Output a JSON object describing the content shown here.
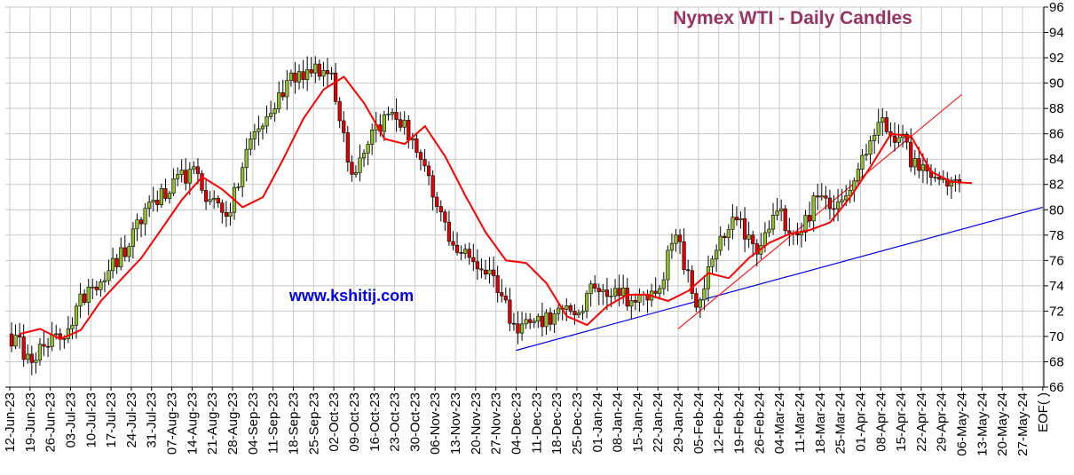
{
  "chart_data": {
    "type": "candlestick",
    "title": "Nymex  WTI - Daily Candles",
    "watermark": "www.kshitij.com",
    "ylim": [
      66,
      96
    ],
    "y_ticks": [
      66,
      68,
      70,
      72,
      74,
      76,
      78,
      80,
      82,
      84,
      86,
      88,
      90,
      92,
      94,
      96
    ],
    "x_tick_labels": [
      "12-Jun-23",
      "19-Jun-23",
      "26-Jun-23",
      "03-Jul-23",
      "10-Jul-23",
      "17-Jul-23",
      "24-Jul-23",
      "31-Jul-23",
      "07-Aug-23",
      "14-Aug-23",
      "21-Aug-23",
      "28-Aug-23",
      "04-Sep-23",
      "11-Sep-23",
      "18-Sep-23",
      "25-Sep-23",
      "02-Oct-23",
      "09-Oct-23",
      "16-Oct-23",
      "23-Oct-23",
      "30-Oct-23",
      "06-Nov-23",
      "13-Nov-23",
      "20-Nov-23",
      "27-Nov-23",
      "04-Dec-23",
      "11-Dec-23",
      "18-Dec-23",
      "25-Dec-23",
      "01-Jan-24",
      "08-Jan-24",
      "15-Jan-24",
      "22-Jan-24",
      "29-Jan-24",
      "05-Feb-24",
      "12-Feb-24",
      "19-Feb-24",
      "26-Feb-24",
      "04-Mar-24",
      "11-Mar-24",
      "18-Mar-24",
      "25-Mar-24",
      "01-Apr-24",
      "08-Apr-24",
      "15-Apr-24",
      "22-Apr-24",
      "29-Apr-24",
      "06-May-24",
      "13-May-24",
      "20-May-24",
      "27-May-24",
      "EOF( )"
    ],
    "weekly_closes": [
      68.6,
      69.2,
      70.6,
      73.9,
      75.2,
      77.1,
      80.6,
      81.3,
      83.2,
      80.8,
      79.8,
      85.6,
      87.6,
      90.8,
      90.8,
      90.8,
      82.8,
      86.3,
      87.7,
      85.6,
      81.0,
      77.2,
      75.9,
      74.8,
      71.0,
      71.2,
      71.8,
      71.7,
      73.8,
      73.8,
      72.7,
      73.4,
      78.0,
      72.3,
      76.8,
      79.2,
      76.5,
      79.9,
      78.0,
      81.0,
      80.6,
      83.2,
      86.9,
      85.7,
      83.1,
      82.4,
      82.1
    ],
    "moving_average": [
      70.2,
      70.6,
      69.8,
      70.5,
      72.8,
      74.5,
      76.2,
      78.5,
      80.8,
      82.6,
      81.6,
      80.2,
      81.0,
      84.0,
      87.2,
      89.5,
      90.5,
      88.4,
      85.6,
      85.2,
      86.6,
      84.2,
      81.1,
      78.2,
      76.0,
      75.8,
      74.2,
      71.6,
      70.9,
      72.4,
      73.3,
      73.3,
      72.8,
      73.6,
      75.0,
      74.6,
      76.2,
      77.4,
      78.1,
      78.4,
      79.0,
      81.0,
      83.4,
      86.0,
      85.8,
      83.0,
      82.2,
      82.1
    ],
    "trendlines": [
      {
        "color": "#0000ee",
        "from": {
          "x": "04-Dec-23",
          "y": 68.9
        },
        "to": {
          "x": "EOF( )",
          "y": 80.2
        }
      },
      {
        "color": "#ff2222",
        "from": {
          "x": "29-Jan-24",
          "y": 70.6
        },
        "to": {
          "x": "06-May-24",
          "y": 89.1
        }
      }
    ],
    "colors": {
      "up_candle": "#8fbf2f",
      "down_candle": "#e60000",
      "moving_average": "#ff0000",
      "title": "#993366",
      "watermark": "#0000ee",
      "grid": "#c8c8c8"
    },
    "grid": true
  }
}
